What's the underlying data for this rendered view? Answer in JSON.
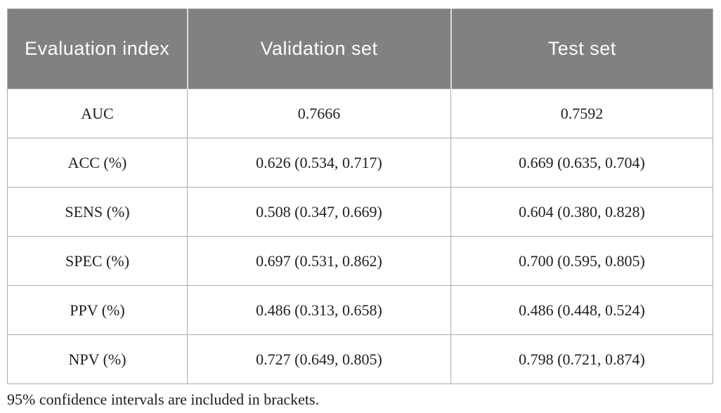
{
  "table": {
    "columns": [
      "Evaluation index",
      "Validation set",
      "Test set"
    ],
    "rows": [
      {
        "label": "AUC",
        "validation": "0.7666",
        "test": "0.7592"
      },
      {
        "label": "ACC (%)",
        "validation": "0.626 (0.534, 0.717)",
        "test": "0.669 (0.635, 0.704)"
      },
      {
        "label": "SENS (%)",
        "validation": "0.508 (0.347, 0.669)",
        "test": "0.604 (0.380, 0.828)"
      },
      {
        "label": "SPEC (%)",
        "validation": "0.697 (0.531, 0.862)",
        "test": "0.700 (0.595, 0.805)"
      },
      {
        "label": "PPV (%)",
        "validation": "0.486 (0.313, 0.658)",
        "test": "0.486 (0.448, 0.524)"
      },
      {
        "label": "NPV (%)",
        "validation": "0.727 (0.649, 0.805)",
        "test": "0.798 (0.721, 0.874)"
      }
    ],
    "footnote": "95% confidence intervals are included in brackets."
  },
  "colors": {
    "header_bg": "#818181",
    "header_text": "#fdfdfd",
    "header_divider": "#dcdcdc",
    "cell_border": "#ababab",
    "body_text": "#1f1f1f",
    "page_bg": "#ffffff"
  }
}
